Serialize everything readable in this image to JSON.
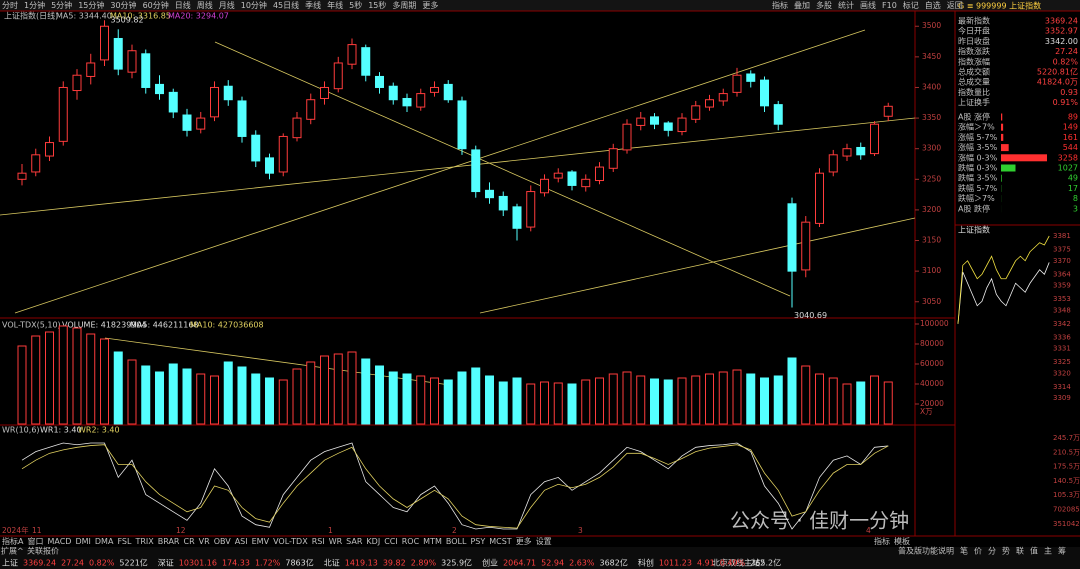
{
  "toolbar": {
    "tabs": [
      "分时",
      "1分钟",
      "5分钟",
      "15分钟",
      "30分钟",
      "60分钟",
      "日线",
      "周线",
      "月线",
      "10分钟",
      "45日线",
      "季线",
      "年线",
      "5秒",
      "15秒",
      "多周期",
      "更多"
    ],
    "right_tabs": [
      "指标",
      "叠加",
      "多股",
      "统计",
      "画线",
      "F10",
      "标记",
      "自选",
      "返回"
    ]
  },
  "main_chart": {
    "type": "candlestick",
    "title": "上证指数(日线)",
    "ma5": "MA5: 3344.40",
    "ma10": "MA10: 3316.85",
    "ma20": "MA20: 3294.07",
    "high_label": "3509.82",
    "low_label": "3040.69",
    "ylim": [
      3030,
      3520
    ],
    "yticks": [
      3500,
      3450,
      3400,
      3350,
      3300,
      3250,
      3200,
      3150,
      3100,
      3050
    ],
    "candles": [
      [
        3250,
        3275,
        3240,
        3260
      ],
      [
        3262,
        3300,
        3255,
        3290
      ],
      [
        3288,
        3320,
        3280,
        3310
      ],
      [
        3312,
        3410,
        3305,
        3400
      ],
      [
        3395,
        3430,
        3380,
        3420
      ],
      [
        3418,
        3455,
        3405,
        3440
      ],
      [
        3445,
        3509.82,
        3435,
        3500
      ],
      [
        3480,
        3495,
        3420,
        3430
      ],
      [
        3425,
        3470,
        3415,
        3460
      ],
      [
        3455,
        3462,
        3390,
        3400
      ],
      [
        3405,
        3420,
        3380,
        3390
      ],
      [
        3392,
        3398,
        3350,
        3360
      ],
      [
        3355,
        3365,
        3320,
        3330
      ],
      [
        3332,
        3360,
        3325,
        3350
      ],
      [
        3352,
        3410,
        3345,
        3400
      ],
      [
        3402,
        3412,
        3370,
        3380
      ],
      [
        3378,
        3385,
        3310,
        3320
      ],
      [
        3322,
        3330,
        3270,
        3280
      ],
      [
        3285,
        3292,
        3250,
        3260
      ],
      [
        3262,
        3325,
        3255,
        3320
      ],
      [
        3318,
        3360,
        3312,
        3350
      ],
      [
        3348,
        3390,
        3340,
        3380
      ],
      [
        3382,
        3410,
        3372,
        3400
      ],
      [
        3398,
        3450,
        3392,
        3440
      ],
      [
        3438,
        3480,
        3430,
        3470
      ],
      [
        3465,
        3470,
        3410,
        3420
      ],
      [
        3418,
        3425,
        3390,
        3400
      ],
      [
        3402,
        3408,
        3372,
        3380
      ],
      [
        3382,
        3390,
        3360,
        3370
      ],
      [
        3368,
        3398,
        3362,
        3390
      ],
      [
        3392,
        3410,
        3385,
        3400
      ],
      [
        3405,
        3412,
        3375,
        3380
      ],
      [
        3378,
        3385,
        3290,
        3300
      ],
      [
        3298,
        3305,
        3220,
        3230
      ],
      [
        3232,
        3245,
        3210,
        3220
      ],
      [
        3222,
        3230,
        3190,
        3200
      ],
      [
        3205,
        3210,
        3150,
        3170
      ],
      [
        3172,
        3240,
        3165,
        3230
      ],
      [
        3228,
        3258,
        3222,
        3250
      ],
      [
        3252,
        3268,
        3245,
        3260
      ],
      [
        3262,
        3265,
        3232,
        3240
      ],
      [
        3238,
        3258,
        3230,
        3250
      ],
      [
        3248,
        3278,
        3242,
        3270
      ],
      [
        3268,
        3308,
        3262,
        3300
      ],
      [
        3298,
        3348,
        3292,
        3340
      ],
      [
        3338,
        3360,
        3330,
        3350
      ],
      [
        3352,
        3358,
        3332,
        3340
      ],
      [
        3342,
        3345,
        3320,
        3330
      ],
      [
        3328,
        3358,
        3322,
        3350
      ],
      [
        3348,
        3378,
        3342,
        3370
      ],
      [
        3368,
        3388,
        3362,
        3380
      ],
      [
        3378,
        3398,
        3370,
        3390
      ],
      [
        3392,
        3432,
        3385,
        3420
      ],
      [
        3422,
        3428,
        3400,
        3410
      ],
      [
        3412,
        3418,
        3360,
        3370
      ],
      [
        3372,
        3378,
        3330,
        3340
      ],
      [
        3210,
        3220,
        3040.69,
        3100
      ],
      [
        3102,
        3190,
        3090,
        3180
      ],
      [
        3178,
        3268,
        3172,
        3260
      ],
      [
        3262,
        3298,
        3255,
        3290
      ],
      [
        3288,
        3308,
        3280,
        3300
      ],
      [
        3302,
        3310,
        3282,
        3290
      ],
      [
        3292,
        3345,
        3288,
        3340
      ],
      [
        3352.97,
        3375,
        3345,
        3369.24
      ]
    ]
  },
  "volume_chart": {
    "title": "VOL-TDX(5,10)",
    "volume": "VOLUME: 418239904",
    "ma5": "MA5: 446211168",
    "ma10": "MA10: 427036608",
    "unit": "X万",
    "ylim": [
      0,
      100000
    ],
    "yticks": [
      100000,
      80000,
      60000,
      40000,
      20000
    ],
    "values": [
      78000,
      88000,
      92000,
      98000,
      96000,
      90000,
      85000,
      72000,
      64000,
      58000,
      52000,
      60000,
      55000,
      50000,
      48000,
      62000,
      57000,
      50000,
      46000,
      44000,
      55000,
      62000,
      68000,
      70000,
      72000,
      65000,
      58000,
      52000,
      50000,
      48000,
      46000,
      44000,
      52000,
      56000,
      48000,
      42000,
      46000,
      40000,
      42000,
      41000,
      40000,
      44000,
      46000,
      50000,
      52000,
      48000,
      45000,
      44000,
      46000,
      48000,
      50000,
      52000,
      54000,
      50000,
      46000,
      48000,
      66000,
      58000,
      50000,
      46000,
      40000,
      42000,
      48000,
      42000
    ]
  },
  "wr_chart": {
    "title": "WR(10,6)",
    "wr1_label": "WR1: 3.40",
    "wr2_label": "WR2: 3.40",
    "ylim": [
      0,
      100
    ],
    "wr1": [
      20,
      10,
      5,
      0,
      2,
      0,
      0,
      40,
      20,
      60,
      70,
      80,
      90,
      70,
      30,
      50,
      85,
      95,
      98,
      60,
      40,
      20,
      10,
      5,
      0,
      45,
      60,
      75,
      80,
      60,
      50,
      70,
      95,
      100,
      98,
      100,
      100,
      60,
      45,
      40,
      55,
      45,
      35,
      20,
      5,
      10,
      20,
      30,
      15,
      5,
      3,
      2,
      0,
      10,
      50,
      70,
      100,
      80,
      40,
      20,
      15,
      25,
      5,
      3.4
    ],
    "wr2": [
      30,
      20,
      12,
      8,
      5,
      3,
      2,
      25,
      25,
      45,
      60,
      70,
      80,
      75,
      50,
      55,
      75,
      88,
      92,
      70,
      50,
      35,
      20,
      12,
      5,
      30,
      50,
      65,
      75,
      65,
      55,
      65,
      85,
      95,
      97,
      98,
      99,
      75,
      55,
      48,
      52,
      48,
      40,
      28,
      12,
      12,
      18,
      25,
      18,
      10,
      6,
      4,
      2,
      8,
      35,
      55,
      85,
      80,
      55,
      35,
      25,
      25,
      12,
      3.4
    ],
    "date_labels": [
      "2024年",
      "11",
      "12",
      "1",
      "2",
      "3",
      "4"
    ]
  },
  "quote_panel": {
    "header": "G ≡ 999999 上证指数",
    "rows": [
      [
        "最新指数",
        "3369.24"
      ],
      [
        "今日开盘",
        "3352.97"
      ],
      [
        "昨日收盘",
        "3342.00"
      ],
      [
        "指数涨跌",
        "27.24"
      ],
      [
        "指数涨幅",
        "0.82%"
      ],
      [
        "总成交额",
        "5220.81亿"
      ],
      [
        "总成交量",
        "41824.0万"
      ],
      [
        "指数量比",
        "0.93"
      ],
      [
        "上证换手",
        "0.91%"
      ]
    ],
    "breadth": [
      {
        "label": "A股 涨停",
        "count": 89
      },
      {
        "label": "涨幅＞7%",
        "count": 149
      },
      {
        "label": "涨幅 5-7%",
        "count": 161
      },
      {
        "label": "涨幅 3-5%",
        "count": 544
      },
      {
        "label": "涨幅 0-3%",
        "count": 3258
      },
      {
        "label": "跌幅 0-3%",
        "count": 1027
      },
      {
        "label": "跌幅 3-5%",
        "count": 49
      },
      {
        "label": "跌幅 5-7%",
        "count": 17
      },
      {
        "label": "跌幅＞7%",
        "count": 8
      },
      {
        "label": "A股 跌停",
        "count": 3
      }
    ]
  },
  "intraday_chart": {
    "title": "上证指数",
    "ylim": [
      3309,
      3381
    ],
    "yticks": [
      3381,
      3375,
      3370,
      3364,
      3359,
      3353,
      3348,
      3342,
      3336,
      3331,
      3325,
      3320,
      3314,
      3309
    ],
    "index": [
      3342,
      3365,
      3360,
      3355,
      3350,
      3352,
      3358,
      3362,
      3355,
      3352,
      3350,
      3355,
      3360,
      3358,
      3356,
      3360,
      3363,
      3366,
      3364,
      3369.24
    ],
    "avg": [
      3342,
      3368,
      3370,
      3366,
      3362,
      3364,
      3368,
      3372,
      3366,
      3362,
      3362,
      3366,
      3370,
      3372,
      3370,
      3374,
      3376,
      3378,
      3377,
      3381
    ],
    "volume_ticks": [
      "245.7万",
      "210.5万",
      "175.5万",
      "140.5万",
      "105.3万",
      "702085",
      "351042"
    ]
  },
  "indicator_tabs": [
    "指标A",
    "窗口",
    "MACD",
    "DMI",
    "DMA",
    "FSL",
    "TRIX",
    "BRAR",
    "CR",
    "VR",
    "OBV",
    "ASI",
    "EMV",
    "VOL-TDX",
    "RSI",
    "WR",
    "SAR",
    "KDJ",
    "CCI",
    "ROC",
    "MTM",
    "BOLL",
    "PSY",
    "MCST",
    "更多",
    "设置"
  ],
  "indicator_right": [
    "指标",
    "模板"
  ],
  "sub_bar": [
    "扩展^",
    "关联报价"
  ],
  "right_sub_bar": [
    "普及版功能说明",
    "笔",
    "价",
    "分",
    "势",
    "联",
    "值",
    "主",
    "筹"
  ],
  "watermark": "公众号 · 佳财一分钟",
  "ticker": [
    [
      "上证",
      "3369.24",
      "27.24",
      "0.82%",
      "5221亿"
    ],
    [
      "深证",
      "10301.16",
      "174.33",
      "1.72%",
      "7863亿"
    ],
    [
      "北证",
      "1419.13",
      "39.82",
      "2.89%",
      "325.9亿"
    ],
    [
      "创业",
      "2064.71",
      "52.94",
      "2.63%",
      "3682亿"
    ],
    [
      "科创",
      "1011.23",
      "4.91",
      "0.49%",
      "265.2亿"
    ]
  ],
  "server": "北京双线主站2"
}
